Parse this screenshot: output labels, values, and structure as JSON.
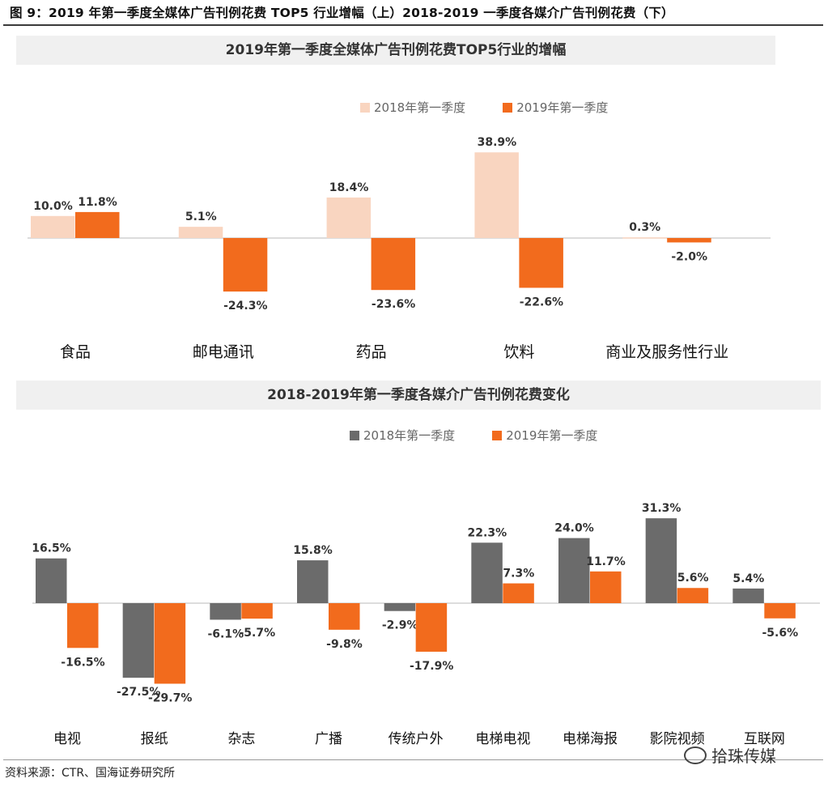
{
  "figure_title": "图 9：2019 年第一季度全媒体广告刊例花费 TOP5 行业增幅（上）2018-2019 一季度各媒介广告刊例花费（下）",
  "footer": "资料来源：CTR、国海证券研究所",
  "brand": "拾珠传媒",
  "colors": {
    "s2018_top": "#f9d5c0",
    "s2018_bottom": "#6b6b6b",
    "s2019": "#f26b1d"
  },
  "chart_data": [
    {
      "type": "bar",
      "title": "2019年第一季度全媒体广告刊例花费TOP5行业的增幅",
      "categories": [
        "食品",
        "邮电通讯",
        "药品",
        "饮料",
        "商业及服务性行业"
      ],
      "series": [
        {
          "name": "2018年第一季度",
          "values": [
            10.0,
            5.1,
            18.4,
            38.9,
            0.3
          ],
          "labels": [
            "10.0%",
            "5.1%",
            "18.4%",
            "38.9%",
            "0.3%"
          ]
        },
        {
          "name": "2019年第一季度",
          "values": [
            11.8,
            -24.3,
            -23.6,
            -22.6,
            -2.0
          ],
          "labels": [
            "11.8%",
            "-24.3%",
            "-23.6%",
            "-22.6%",
            "-2.0%"
          ]
        }
      ],
      "unit": "%",
      "legend_position": "top-right"
    },
    {
      "type": "bar",
      "title": "2018-2019年第一季度各媒介广告刊例花费变化",
      "categories": [
        "电视",
        "报纸",
        "杂志",
        "广播",
        "传统户外",
        "电梯电视",
        "电梯海报",
        "影院视频",
        "互联网"
      ],
      "series": [
        {
          "name": "2018年第一季度",
          "values": [
            16.5,
            -27.5,
            -6.1,
            15.8,
            -2.9,
            22.3,
            24.0,
            31.3,
            5.4
          ],
          "labels": [
            "16.5%",
            "-27.5%",
            "-6.1%",
            "15.8%",
            "-2.9%",
            "22.3%",
            "24.0%",
            "31.3%",
            "5.4%"
          ]
        },
        {
          "name": "2019年第一季度",
          "values": [
            -16.5,
            -29.7,
            -5.7,
            -9.8,
            -17.9,
            7.3,
            11.7,
            5.6,
            -5.6
          ],
          "labels": [
            "-16.5%",
            "-29.7%",
            "-5.7%",
            "-9.8%",
            "-17.9%",
            "7.3%",
            "11.7%",
            "5.6%",
            "-5.6%"
          ]
        }
      ],
      "unit": "%",
      "legend_position": "top-right"
    }
  ]
}
